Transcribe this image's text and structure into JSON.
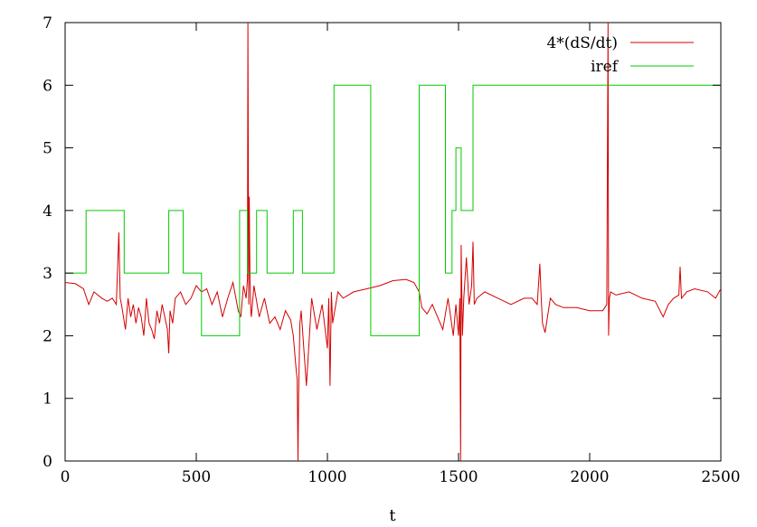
{
  "chart_data": {
    "type": "line",
    "title": "",
    "xlabel": "t",
    "ylabel": "",
    "xlim": [
      0,
      2500
    ],
    "ylim": [
      0,
      7
    ],
    "grid": false,
    "legend_position": "top-right",
    "x_ticks": [
      0,
      500,
      1000,
      1500,
      2000,
      2500
    ],
    "x_tick_labels": [
      "0",
      "500",
      "1000",
      "1500",
      "2000",
      "2500"
    ],
    "y_ticks": [
      0,
      1,
      2,
      3,
      4,
      5,
      6,
      7
    ],
    "y_tick_labels": [
      "0",
      "1",
      "2",
      "3",
      "4",
      "5",
      "6",
      "7"
    ],
    "series": [
      {
        "name": "4*(dS/dt)",
        "color": "#d40000",
        "style": "line",
        "x": [
          0,
          40,
          70,
          90,
          100,
          110,
          140,
          160,
          180,
          195,
          205,
          210,
          215,
          230,
          240,
          250,
          260,
          270,
          280,
          290,
          300,
          310,
          320,
          330,
          340,
          350,
          360,
          370,
          380,
          390,
          395,
          400,
          410,
          420,
          440,
          460,
          480,
          500,
          520,
          540,
          560,
          580,
          600,
          620,
          640,
          660,
          670,
          680,
          690,
          695,
          697,
          700,
          702,
          705,
          708,
          710,
          720,
          740,
          760,
          780,
          800,
          820,
          840,
          860,
          870,
          880,
          885,
          888,
          890,
          895,
          900,
          920,
          940,
          960,
          980,
          1000,
          1005,
          1010,
          1015,
          1020,
          1040,
          1060,
          1100,
          1150,
          1200,
          1250,
          1300,
          1330,
          1350,
          1360,
          1380,
          1400,
          1420,
          1440,
          1460,
          1480,
          1490,
          1500,
          1505,
          1508,
          1510,
          1515,
          1520,
          1530,
          1540,
          1550,
          1555,
          1560,
          1570,
          1600,
          1650,
          1700,
          1750,
          1780,
          1800,
          1810,
          1815,
          1820,
          1830,
          1850,
          1870,
          1900,
          1950,
          2000,
          2050,
          2065,
          2070,
          2072,
          2075,
          2080,
          2100,
          2150,
          2200,
          2250,
          2280,
          2300,
          2320,
          2340,
          2345,
          2350,
          2370,
          2400,
          2450,
          2480,
          2500
        ],
        "y": [
          2.85,
          2.83,
          2.75,
          2.5,
          2.6,
          2.7,
          2.6,
          2.55,
          2.6,
          2.5,
          3.65,
          2.6,
          2.5,
          2.1,
          2.6,
          2.3,
          2.5,
          2.2,
          2.45,
          2.3,
          2.0,
          2.6,
          2.2,
          2.1,
          1.95,
          2.4,
          2.2,
          2.5,
          2.3,
          2.1,
          1.72,
          2.4,
          2.2,
          2.6,
          2.7,
          2.5,
          2.6,
          2.8,
          2.7,
          2.75,
          2.5,
          2.7,
          2.3,
          2.6,
          2.85,
          2.4,
          2.3,
          2.8,
          2.6,
          2.9,
          7.0,
          2.5,
          4.22,
          2.9,
          2.4,
          2.3,
          2.8,
          2.3,
          2.6,
          2.2,
          2.3,
          2.1,
          2.4,
          2.25,
          2.0,
          1.5,
          1.3,
          0.0,
          1.0,
          2.2,
          2.4,
          1.2,
          2.6,
          2.1,
          2.5,
          1.8,
          2.6,
          1.2,
          2.7,
          2.2,
          2.7,
          2.6,
          2.7,
          2.75,
          2.8,
          2.88,
          2.9,
          2.85,
          2.7,
          2.45,
          2.35,
          2.5,
          2.3,
          2.1,
          2.6,
          2.0,
          2.5,
          2.0,
          2.6,
          0.0,
          3.45,
          2.0,
          2.6,
          3.25,
          2.5,
          2.8,
          3.5,
          2.5,
          2.6,
          2.7,
          2.6,
          2.5,
          2.6,
          2.6,
          2.5,
          3.15,
          2.6,
          2.2,
          2.05,
          2.6,
          2.5,
          2.45,
          2.45,
          2.4,
          2.4,
          2.5,
          7.0,
          2.0,
          2.6,
          2.7,
          2.65,
          2.7,
          2.6,
          2.55,
          2.3,
          2.5,
          2.6,
          2.65,
          3.1,
          2.6,
          2.7,
          2.75,
          2.7,
          2.6,
          2.75
        ]
      },
      {
        "name": "iref",
        "color": "#00cc00",
        "style": "step",
        "x": [
          0,
          80,
          80,
          225,
          225,
          395,
          395,
          450,
          450,
          520,
          520,
          665,
          665,
          695,
          695,
          730,
          730,
          770,
          770,
          870,
          870,
          905,
          905,
          1025,
          1025,
          1165,
          1165,
          1350,
          1350,
          1450,
          1450,
          1475,
          1475,
          1490,
          1490,
          1510,
          1510,
          1555,
          1555,
          2500
        ],
        "y": [
          3,
          3,
          4,
          4,
          3,
          3,
          4,
          4,
          3,
          3,
          2,
          2,
          4,
          4,
          3,
          3,
          4,
          4,
          3,
          3,
          4,
          4,
          3,
          3,
          6,
          6,
          2,
          2,
          6,
          6,
          3,
          3,
          4,
          4,
          5,
          5,
          4,
          4,
          6,
          6
        ]
      }
    ]
  }
}
